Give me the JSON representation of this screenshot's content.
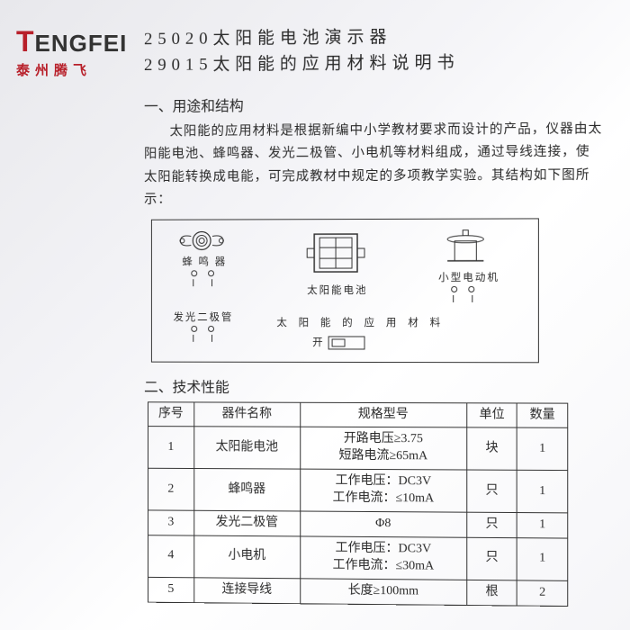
{
  "logo": {
    "en_pre": "T",
    "en_rest": "ENGFEI",
    "cn": "泰州腾飞"
  },
  "title": {
    "line1": "25020太阳能电池演示器",
    "line2": "29015太阳能的应用材料说明书"
  },
  "section1": {
    "heading": "一、用途和结构",
    "para": "太阳能的应用材料是根据新编中小学教材要求而设计的产品，仪器由太阳能电池、蜂鸣器、发光二极管、小电机等材料组成，通过导线连接，使太阳能转换成电能，可完成教材中规定的多项教学实验。其结构如下图所示："
  },
  "diagram": {
    "buzzer": "蜂 鸣 器",
    "solar_cell": "太阳能电池",
    "motor": "小型电动机",
    "led": "发光二极管",
    "caption": "太 阳 能 的 应 用 材 料",
    "switch": "开"
  },
  "section2": {
    "heading": "二、技术性能"
  },
  "table": {
    "headers": {
      "seq": "序号",
      "name": "器件名称",
      "spec": "规格型号",
      "unit": "单位",
      "qty": "数量"
    },
    "rows": [
      {
        "seq": "1",
        "name": "太阳能电池",
        "spec": "开路电压≥3.75\n短路电流≥65mA",
        "unit": "块",
        "qty": "1"
      },
      {
        "seq": "2",
        "name": "蜂鸣器",
        "spec": "工作电压：DC3V\n工作电流：≤10mA",
        "unit": "只",
        "qty": "1"
      },
      {
        "seq": "3",
        "name": "发光二极管",
        "spec": "Φ8",
        "unit": "只",
        "qty": "1"
      },
      {
        "seq": "4",
        "name": "小电机",
        "spec": "工作电压：DC3V\n工作电流：≤30mA",
        "unit": "只",
        "qty": "1"
      },
      {
        "seq": "5",
        "name": "连接导线",
        "spec": "长度≥100mm",
        "unit": "根",
        "qty": "2"
      }
    ]
  },
  "colors": {
    "brand_red": "#b8202a",
    "text": "#2a2a2a",
    "border": "#333333"
  }
}
